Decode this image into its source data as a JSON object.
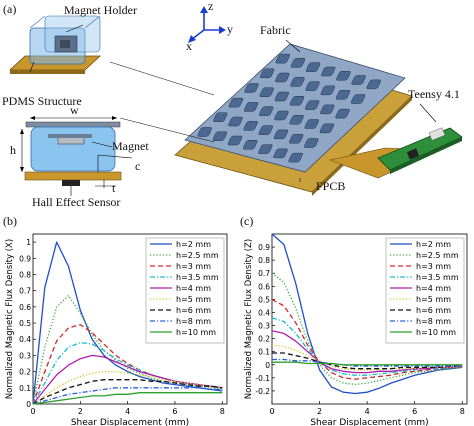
{
  "figure": {
    "panel_a": "(a)",
    "panel_b": "(b)",
    "panel_c": "(c)",
    "labels": {
      "magnet_holder": "Magnet Holder",
      "pdms_structure": "PDMS Structure",
      "fabric": "Fabric",
      "teensy": "Teensy 4.1",
      "magnet": "Magnet",
      "hall_sensor": "Hall Effect Sensor",
      "fpcb": "FPCB",
      "dim_w": "w",
      "dim_h": "h",
      "dim_c": "c",
      "dim_t": "t",
      "axis_z": "z",
      "axis_x": "x",
      "axis_y": "y"
    }
  },
  "chart_data": [
    {
      "type": "line",
      "xlabel": "Shear Displacement (mm)",
      "ylabel": "Normalized Magnetic Flux Density (X)",
      "xlim": [
        0,
        8.2
      ],
      "ylim": [
        0,
        1.05
      ],
      "xticks": [
        0,
        2,
        4,
        6,
        8
      ],
      "yticks": [
        0,
        0.1,
        0.2,
        0.3,
        0.4,
        0.5,
        0.6,
        0.7,
        0.8,
        0.9,
        1
      ],
      "legend": "top-right",
      "grid": false,
      "x": [
        0,
        0.5,
        1,
        1.5,
        2,
        2.5,
        3,
        3.5,
        4,
        4.5,
        5,
        5.5,
        6,
        6.5,
        7,
        7.5,
        8
      ],
      "series": [
        {
          "name": "h=2 mm",
          "color": "#1f4fc8",
          "dash": "solid",
          "values": [
            0,
            0.72,
            1.0,
            0.85,
            0.58,
            0.4,
            0.3,
            0.24,
            0.2,
            0.17,
            0.15,
            0.13,
            0.12,
            0.11,
            0.1,
            0.09,
            0.08
          ]
        },
        {
          "name": "h=2.5 mm",
          "color": "#3aa63a",
          "dash": "dotted",
          "values": [
            0,
            0.35,
            0.6,
            0.67,
            0.56,
            0.43,
            0.33,
            0.27,
            0.22,
            0.19,
            0.16,
            0.14,
            0.13,
            0.12,
            0.11,
            0.1,
            0.09
          ]
        },
        {
          "name": "h=3 mm",
          "color": "#d62728",
          "dash": "dashed",
          "values": [
            0,
            0.2,
            0.39,
            0.47,
            0.49,
            0.44,
            0.37,
            0.3,
            0.25,
            0.21,
            0.18,
            0.16,
            0.14,
            0.13,
            0.12,
            0.11,
            0.1
          ]
        },
        {
          "name": "h=3.5 mm",
          "color": "#17becf",
          "dash": "dashdot",
          "values": [
            0,
            0.13,
            0.27,
            0.35,
            0.38,
            0.37,
            0.33,
            0.28,
            0.24,
            0.21,
            0.18,
            0.16,
            0.14,
            0.13,
            0.12,
            0.11,
            0.1
          ]
        },
        {
          "name": "h=4 mm",
          "color": "#b01bb0",
          "dash": "solid",
          "values": [
            0,
            0.09,
            0.18,
            0.24,
            0.28,
            0.3,
            0.29,
            0.26,
            0.23,
            0.2,
            0.18,
            0.16,
            0.14,
            0.13,
            0.12,
            0.11,
            0.1
          ]
        },
        {
          "name": "h=5 mm",
          "color": "#c9c91e",
          "dash": "dotted",
          "values": [
            0,
            0.05,
            0.1,
            0.14,
            0.17,
            0.19,
            0.2,
            0.2,
            0.19,
            0.18,
            0.17,
            0.15,
            0.14,
            0.13,
            0.12,
            0.11,
            0.1
          ]
        },
        {
          "name": "h=6 mm",
          "color": "#111111",
          "dash": "dashed",
          "values": [
            0,
            0.04,
            0.07,
            0.1,
            0.12,
            0.14,
            0.15,
            0.15,
            0.15,
            0.15,
            0.14,
            0.14,
            0.13,
            0.12,
            0.11,
            0.11,
            0.1
          ]
        },
        {
          "name": "h=8 mm",
          "color": "#2b5fd9",
          "dash": "dashdot",
          "values": [
            0,
            0.02,
            0.04,
            0.06,
            0.07,
            0.08,
            0.09,
            0.1,
            0.1,
            0.1,
            0.1,
            0.1,
            0.1,
            0.1,
            0.1,
            0.09,
            0.09
          ]
        },
        {
          "name": "h=10 mm",
          "color": "#2ca02c",
          "dash": "solid",
          "values": [
            0,
            0.01,
            0.02,
            0.03,
            0.04,
            0.05,
            0.05,
            0.06,
            0.06,
            0.07,
            0.07,
            0.07,
            0.07,
            0.07,
            0.07,
            0.07,
            0.07
          ]
        }
      ]
    },
    {
      "type": "line",
      "xlabel": "Shear Displacement (mm)",
      "ylabel": "Normalized Magnetic Flux Density (Z)",
      "xlim": [
        0,
        8.2
      ],
      "ylim": [
        -0.3,
        1.0
      ],
      "xticks": [
        0,
        2,
        4,
        6,
        8
      ],
      "yticks": [
        -0.2,
        -0.1,
        0,
        0.1,
        0.2,
        0.3,
        0.4,
        0.5,
        0.6,
        0.7,
        0.8,
        0.9
      ],
      "legend": "top-right",
      "grid": false,
      "x": [
        0,
        0.5,
        1,
        1.5,
        2,
        2.5,
        3,
        3.5,
        4,
        4.5,
        5,
        5.5,
        6,
        6.5,
        7,
        7.5,
        8
      ],
      "series": [
        {
          "name": "h=2 mm",
          "color": "#1f4fc8",
          "dash": "solid",
          "values": [
            1.0,
            0.92,
            0.62,
            0.24,
            -0.04,
            -0.17,
            -0.21,
            -0.22,
            -0.21,
            -0.18,
            -0.14,
            -0.11,
            -0.08,
            -0.06,
            -0.04,
            -0.03,
            -0.02
          ]
        },
        {
          "name": "h=2.5 mm",
          "color": "#3aa63a",
          "dash": "dotted",
          "values": [
            0.7,
            0.63,
            0.43,
            0.18,
            0.0,
            -0.1,
            -0.14,
            -0.15,
            -0.14,
            -0.12,
            -0.1,
            -0.08,
            -0.06,
            -0.05,
            -0.04,
            -0.03,
            -0.02
          ]
        },
        {
          "name": "h=3 mm",
          "color": "#d62728",
          "dash": "dashed",
          "values": [
            0.5,
            0.45,
            0.32,
            0.15,
            0.02,
            -0.06,
            -0.1,
            -0.11,
            -0.1,
            -0.09,
            -0.08,
            -0.06,
            -0.05,
            -0.04,
            -0.03,
            -0.02,
            -0.02
          ]
        },
        {
          "name": "h=3.5 mm",
          "color": "#17becf",
          "dash": "dashdot",
          "values": [
            0.36,
            0.33,
            0.24,
            0.12,
            0.02,
            -0.04,
            -0.07,
            -0.08,
            -0.08,
            -0.07,
            -0.06,
            -0.05,
            -0.04,
            -0.03,
            -0.03,
            -0.02,
            -0.02
          ]
        },
        {
          "name": "h=4 mm",
          "color": "#b01bb0",
          "dash": "solid",
          "values": [
            0.26,
            0.24,
            0.18,
            0.1,
            0.02,
            -0.03,
            -0.05,
            -0.06,
            -0.06,
            -0.05,
            -0.05,
            -0.04,
            -0.03,
            -0.03,
            -0.02,
            -0.02,
            -0.01
          ]
        },
        {
          "name": "h=5 mm",
          "color": "#c9c91e",
          "dash": "dotted",
          "values": [
            0.15,
            0.14,
            0.11,
            0.07,
            0.03,
            -0.01,
            -0.03,
            -0.04,
            -0.04,
            -0.04,
            -0.03,
            -0.03,
            -0.03,
            -0.02,
            -0.02,
            -0.02,
            -0.01
          ]
        },
        {
          "name": "h=6 mm",
          "color": "#111111",
          "dash": "dashed",
          "values": [
            0.09,
            0.09,
            0.07,
            0.05,
            0.02,
            0.0,
            -0.02,
            -0.03,
            -0.03,
            -0.03,
            -0.03,
            -0.02,
            -0.02,
            -0.02,
            -0.02,
            -0.01,
            -0.01
          ]
        },
        {
          "name": "h=8 mm",
          "color": "#2b5fd9",
          "dash": "dashdot",
          "values": [
            0.04,
            0.04,
            0.03,
            0.03,
            0.02,
            0.01,
            0.0,
            -0.01,
            -0.01,
            -0.01,
            -0.01,
            -0.01,
            -0.01,
            -0.01,
            -0.01,
            -0.01,
            -0.01
          ]
        },
        {
          "name": "h=10 mm",
          "color": "#2ca02c",
          "dash": "solid",
          "values": [
            0.02,
            0.02,
            0.02,
            0.01,
            0.01,
            0.01,
            0.0,
            0.0,
            0.0,
            0.0,
            0.0,
            0.0,
            0.0,
            0.0,
            0.0,
            0.0,
            0.0
          ]
        }
      ]
    }
  ]
}
